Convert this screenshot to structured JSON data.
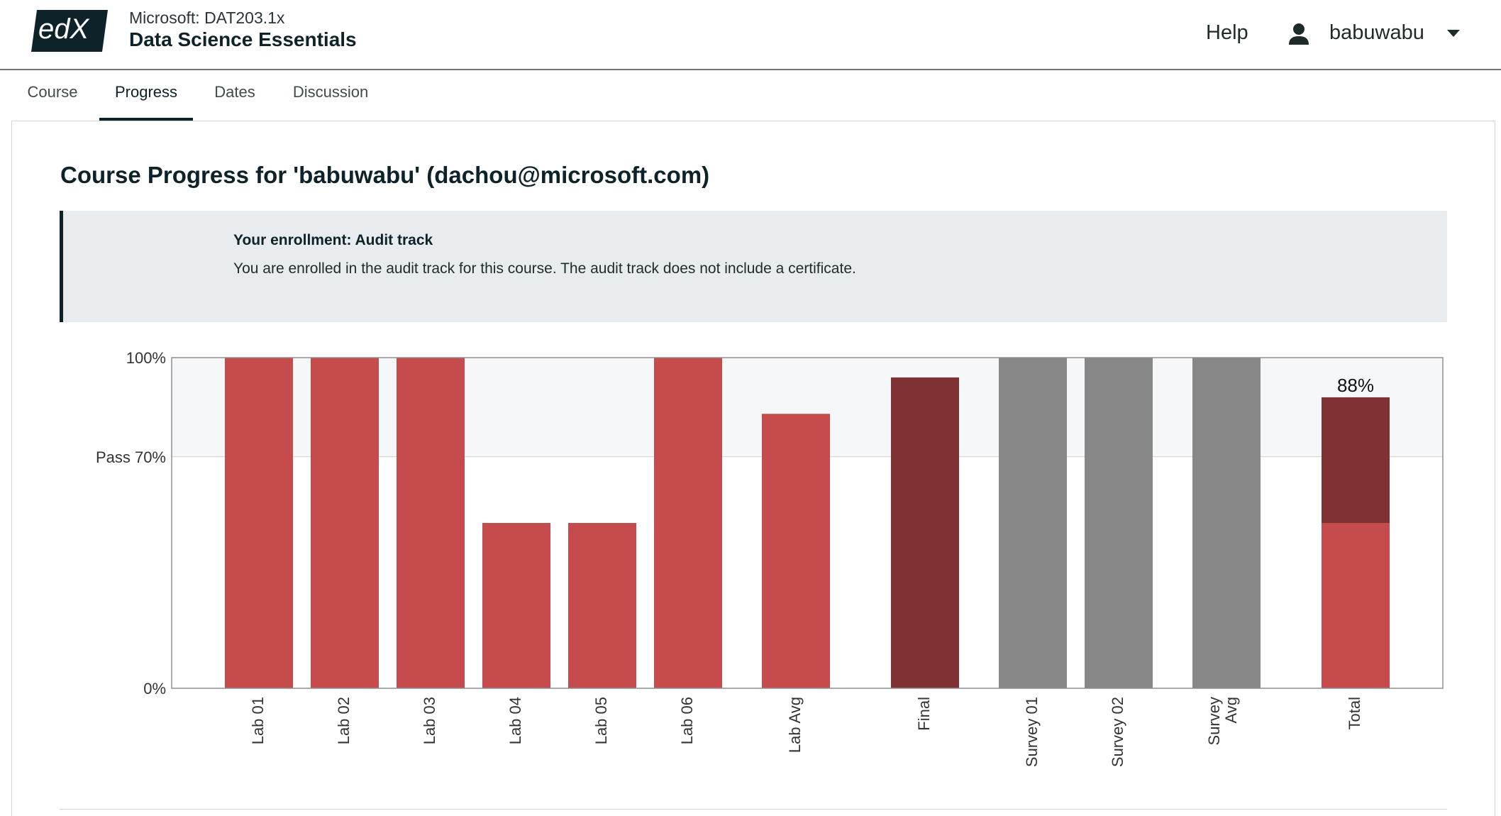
{
  "header": {
    "logo_text": "edX",
    "course_org": "Microsoft: DAT203.1x",
    "course_name": "Data Science Essentials",
    "help_label": "Help",
    "username": "babuwabu",
    "icons": {
      "user": "person-icon",
      "menu": "caret-down-icon"
    }
  },
  "tabs": [
    {
      "label": "Course",
      "active": false
    },
    {
      "label": "Progress",
      "active": true
    },
    {
      "label": "Dates",
      "active": false
    },
    {
      "label": "Discussion",
      "active": false
    }
  ],
  "main": {
    "title": "Course Progress for 'babuwabu' (dachou@microsoft.com)",
    "enrollment": {
      "title": "Your enrollment: Audit track",
      "body": "You are enrolled in the audit track for this course. The audit track does not include a certificate."
    }
  },
  "colors": {
    "lab": "#c54b4d",
    "final": "#7f3234",
    "survey": "#878787",
    "pass_band": "#f6f7f9",
    "brand": "#0d2229"
  },
  "chart_data": {
    "type": "bar",
    "y_ticks": [
      {
        "label": "100%",
        "value": 100
      },
      {
        "label": "Pass 70%",
        "value": 70
      },
      {
        "label": "0%",
        "value": 0
      }
    ],
    "ylim": [
      0,
      100
    ],
    "pass_threshold": 70,
    "categories": [
      "Lab 01",
      "Lab 02",
      "Lab 03",
      "Lab 04",
      "Lab 05",
      "Lab 06",
      "Lab Avg",
      "Final",
      "Survey 01",
      "Survey 02",
      "Survey Avg",
      "Total"
    ],
    "bars": [
      {
        "category": "Lab 01",
        "value": 100,
        "kind": "lab"
      },
      {
        "category": "Lab 02",
        "value": 100,
        "kind": "lab"
      },
      {
        "category": "Lab 03",
        "value": 100,
        "kind": "lab"
      },
      {
        "category": "Lab 04",
        "value": 50,
        "kind": "lab"
      },
      {
        "category": "Lab 05",
        "value": 50,
        "kind": "lab"
      },
      {
        "category": "Lab 06",
        "value": 100,
        "kind": "lab"
      },
      {
        "category": "Lab Avg",
        "value": 83,
        "kind": "lab"
      },
      {
        "category": "Final",
        "value": 94,
        "kind": "final"
      },
      {
        "category": "Survey 01",
        "value": 100,
        "kind": "survey"
      },
      {
        "category": "Survey 02",
        "value": 100,
        "kind": "survey"
      },
      {
        "category": "Survey Avg",
        "value": 100,
        "kind": "survey"
      },
      {
        "category": "Total",
        "value": 88,
        "kind": "total",
        "stack": [
          {
            "kind": "lab",
            "value": 50
          },
          {
            "kind": "final",
            "value": 38
          }
        ],
        "label": "88%"
      }
    ],
    "grid": false,
    "legend": "none"
  }
}
